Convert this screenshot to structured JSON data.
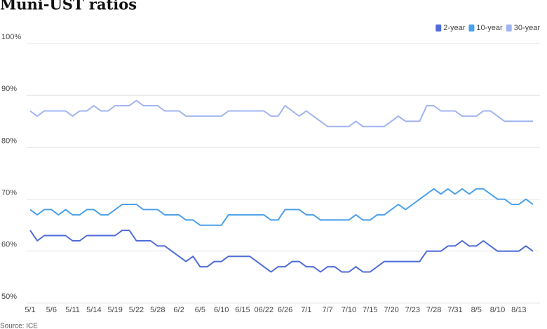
{
  "chart_data": {
    "type": "line",
    "title": "Muni-UST ratios",
    "source": "Source: ICE",
    "categories": [
      "5/1",
      null,
      null,
      "5/6",
      null,
      null,
      "5/11",
      null,
      null,
      "5/14",
      null,
      null,
      "5/19",
      null,
      null,
      "5/22",
      null,
      null,
      "5/28",
      null,
      null,
      "6/2",
      null,
      null,
      "6/5",
      null,
      null,
      "6/10",
      null,
      null,
      "6/15",
      null,
      null,
      "06/22",
      null,
      null,
      "6/26",
      null,
      null,
      "7/1",
      null,
      null,
      "7/7",
      null,
      null,
      "7/10",
      null,
      null,
      "7/15",
      null,
      null,
      "7/20",
      null,
      null,
      "7/23",
      null,
      null,
      "7/28",
      null,
      null,
      "7/31",
      null,
      null,
      "8/5",
      null,
      null,
      "8/10",
      null,
      null,
      "8/13",
      null,
      null
    ],
    "series": [
      {
        "name": "2-year",
        "color": "#4f6bd8",
        "values": [
          64,
          62,
          63,
          63,
          63,
          63,
          62,
          62,
          63,
          63,
          63,
          63,
          63,
          64,
          64,
          62,
          62,
          62,
          61,
          61,
          60,
          59,
          58,
          59,
          57,
          57,
          58,
          58,
          59,
          59,
          59,
          59,
          58,
          57,
          56,
          57,
          57,
          58,
          58,
          57,
          57,
          56,
          57,
          57,
          56,
          56,
          57,
          56,
          56,
          57,
          58,
          58,
          58,
          58,
          58,
          58,
          60,
          60,
          60,
          61,
          61,
          62,
          61,
          61,
          62,
          61,
          60,
          60,
          60,
          60,
          61,
          60
        ]
      },
      {
        "name": "10-year",
        "color": "#4ba0ea",
        "values": [
          68,
          67,
          68,
          68,
          67,
          68,
          67,
          67,
          68,
          68,
          67,
          67,
          68,
          69,
          69,
          69,
          68,
          68,
          68,
          67,
          67,
          67,
          66,
          66,
          65,
          65,
          65,
          65,
          67,
          67,
          67,
          67,
          67,
          67,
          66,
          66,
          68,
          68,
          68,
          67,
          67,
          66,
          66,
          66,
          66,
          66,
          67,
          66,
          66,
          67,
          67,
          68,
          69,
          68,
          69,
          70,
          71,
          72,
          71,
          72,
          71,
          72,
          71,
          72,
          72,
          71,
          70,
          70,
          69,
          69,
          70,
          69
        ]
      },
      {
        "name": "30-year",
        "color": "#9fb4f0",
        "values": [
          87,
          86,
          87,
          87,
          87,
          87,
          86,
          87,
          87,
          88,
          87,
          87,
          88,
          88,
          88,
          89,
          88,
          88,
          88,
          87,
          87,
          87,
          86,
          86,
          86,
          86,
          86,
          86,
          87,
          87,
          87,
          87,
          87,
          87,
          86,
          86,
          88,
          87,
          86,
          87,
          86,
          85,
          84,
          84,
          84,
          84,
          85,
          84,
          84,
          84,
          84,
          85,
          86,
          85,
          85,
          85,
          88,
          88,
          87,
          87,
          87,
          86,
          86,
          86,
          87,
          87,
          86,
          85,
          85,
          85,
          85,
          85
        ]
      }
    ],
    "ylim": [
      50,
      100
    ],
    "yticks": [
      {
        "value": 50,
        "label": "50%"
      },
      {
        "value": 60,
        "label": "60%"
      },
      {
        "value": 70,
        "label": "70%"
      },
      {
        "value": 80,
        "label": "80%"
      },
      {
        "value": 90,
        "label": "90%"
      },
      {
        "value": 100,
        "label": "100%"
      }
    ],
    "grid": true,
    "legend": "top-right"
  }
}
